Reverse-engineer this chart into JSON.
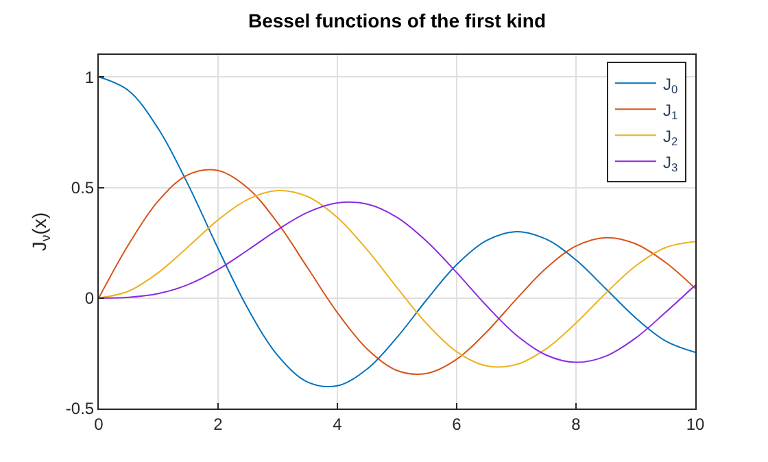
{
  "chart_data": {
    "type": "line",
    "title": "Bessel functions of the first kind",
    "ylabel": "J$_{ν}$(x)",
    "x": [
      0,
      0.5,
      1,
      1.5,
      2,
      2.5,
      3,
      3.5,
      4,
      4.5,
      5,
      5.5,
      6,
      6.5,
      7,
      7.5,
      8,
      8.5,
      9,
      9.5,
      10
    ],
    "series": [
      {
        "name": "J$_{0}$",
        "color": "#0072bd",
        "values": [
          1,
          0.938,
          0.765,
          0.512,
          0.224,
          -0.048,
          -0.26,
          -0.38,
          -0.397,
          -0.321,
          -0.178,
          -0.007,
          0.151,
          0.26,
          0.3,
          0.266,
          0.172,
          0.042,
          -0.09,
          -0.194,
          -0.246
        ]
      },
      {
        "name": "J$_{1}$",
        "color": "#d95319",
        "values": [
          0,
          0.242,
          0.44,
          0.558,
          0.577,
          0.497,
          0.339,
          0.137,
          -0.066,
          -0.231,
          -0.328,
          -0.341,
          -0.277,
          -0.154,
          -0.005,
          0.135,
          0.235,
          0.273,
          0.245,
          0.161,
          0.043
        ]
      },
      {
        "name": "J$_{2}$",
        "color": "#edb120",
        "values": [
          0,
          0.031,
          0.115,
          0.232,
          0.353,
          0.446,
          0.486,
          0.459,
          0.364,
          0.218,
          0.047,
          -0.117,
          -0.243,
          -0.307,
          -0.301,
          -0.23,
          -0.113,
          0.022,
          0.145,
          0.228,
          0.255
        ]
      },
      {
        "name": "J$_{3}$",
        "color": "#8a2be2",
        "values": [
          0,
          0.003,
          0.02,
          0.061,
          0.129,
          0.217,
          0.309,
          0.387,
          0.43,
          0.425,
          0.365,
          0.256,
          0.115,
          -0.035,
          -0.168,
          -0.258,
          -0.291,
          -0.263,
          -0.181,
          -0.065,
          0.058
        ]
      }
    ],
    "xlim": [
      0,
      10
    ],
    "xticks": [
      0,
      2,
      4,
      6,
      8,
      10
    ],
    "ylim": [
      -0.5,
      1.1
    ],
    "yticks": [
      -0.5,
      0,
      0.5,
      1
    ],
    "grid": true,
    "legend": "top right",
    "marker": "none",
    "line_style": "solid"
  }
}
